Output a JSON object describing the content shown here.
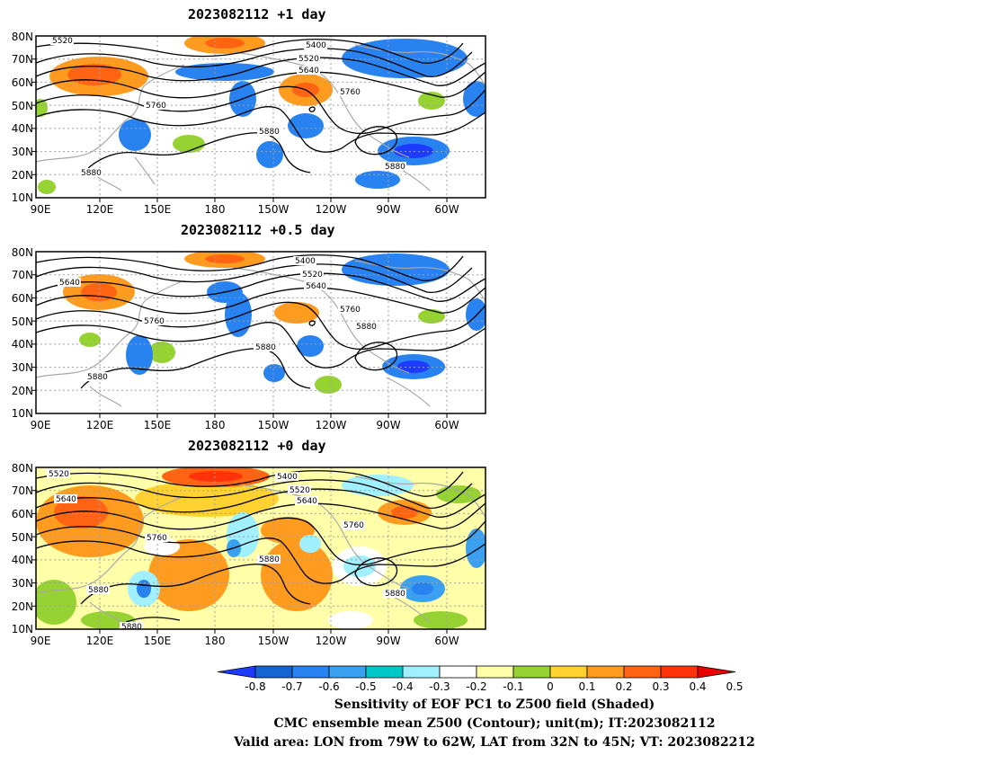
{
  "panels": [
    {
      "title": "2023082112 +1 day",
      "contour_labels": [
        "5520",
        "5400",
        "5520",
        "5640",
        "5760",
        "5760",
        "5880",
        "5880",
        "5880"
      ]
    },
    {
      "title": "2023082112 +0.5 day",
      "contour_labels": [
        "5400",
        "5520",
        "5640",
        "5640",
        "5760",
        "5760",
        "5880",
        "5880",
        "5880"
      ]
    },
    {
      "title": "2023082112 +0 day",
      "contour_labels": [
        "5520",
        "5400",
        "5520",
        "5640",
        "5640",
        "5760",
        "5760",
        "5880",
        "5880",
        "5880",
        "5880"
      ]
    }
  ],
  "axes": {
    "lat_labels": [
      "80N",
      "70N",
      "60N",
      "50N",
      "40N",
      "30N",
      "20N",
      "10N"
    ],
    "lon_labels": [
      "90E",
      "120E",
      "150E",
      "180",
      "150W",
      "120W",
      "90W",
      "60W"
    ]
  },
  "colorbar": {
    "tick_labels": [
      "-0.8",
      "-0.7",
      "-0.6",
      "-0.5",
      "-0.4",
      "-0.3",
      "-0.2",
      "-0.1",
      "0",
      "0.1",
      "0.2",
      "0.3",
      "0.4",
      "0.5"
    ],
    "colors": [
      "#1e3cff",
      "#1464d2",
      "#2882f0",
      "#3ca0f0",
      "#00c8c8",
      "#a0f0ff",
      "#ffffff",
      "#ffffaa",
      "#96d232",
      "#ffd232",
      "#ff9b1e",
      "#ff6414",
      "#ff320a",
      "#e60000"
    ]
  },
  "footer": {
    "line1": "Sensitivity of EOF PC1 to Z500 field (Shaded)",
    "line2": "CMC ensemble mean Z500 (Contour); unit(m); IT:2023082112",
    "line3": "Valid area: LON from 79W to 62W, LAT from 32N to 45N; VT: 2023082212"
  }
}
